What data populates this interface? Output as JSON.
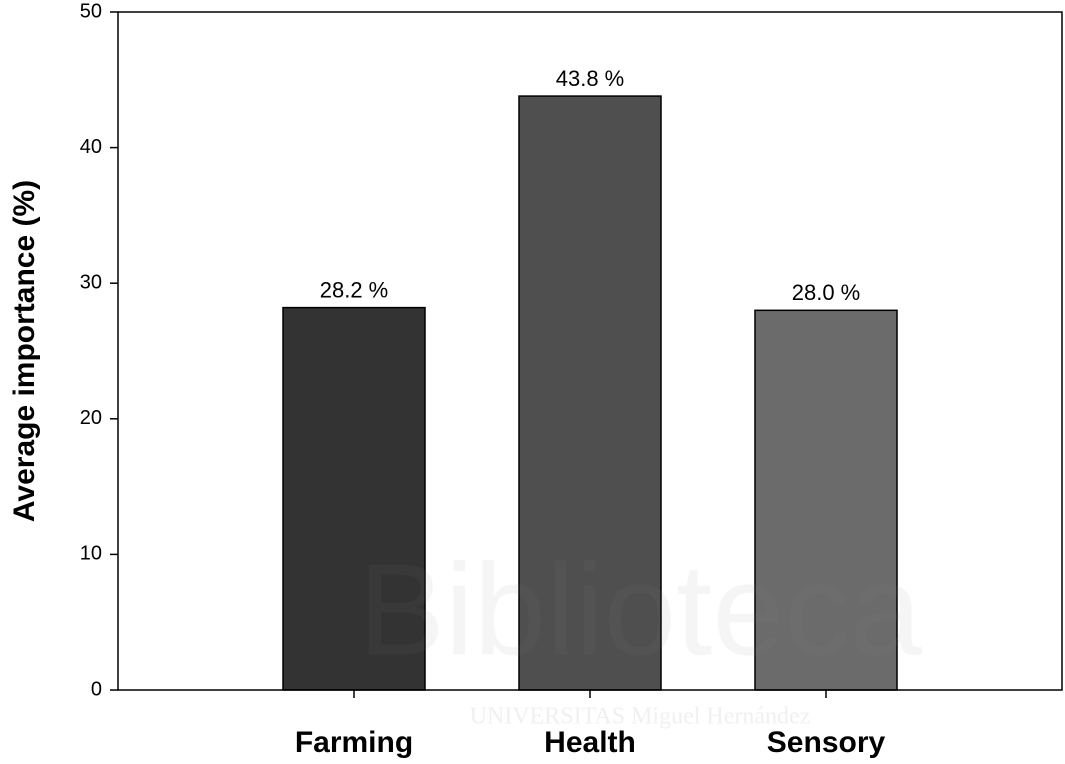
{
  "chart_data": {
    "type": "bar",
    "ylabel": "Average importance (%)",
    "categories": [
      "Farming",
      "Health",
      "Sensory"
    ],
    "values": [
      28.2,
      43.8,
      28.0
    ],
    "value_labels": [
      "28.2 %",
      "43.8 %",
      "28.0 %"
    ],
    "colors": [
      "#333333",
      "#4f4f4f",
      "#6b6b6b"
    ],
    "ylim": [
      0,
      50
    ],
    "yticks": [
      0,
      10,
      20,
      30,
      40,
      50
    ],
    "grid": false
  },
  "watermark": {
    "title": "Biblioteca",
    "subtitle": "UNIVERSITAS Miguel Hernández"
  }
}
